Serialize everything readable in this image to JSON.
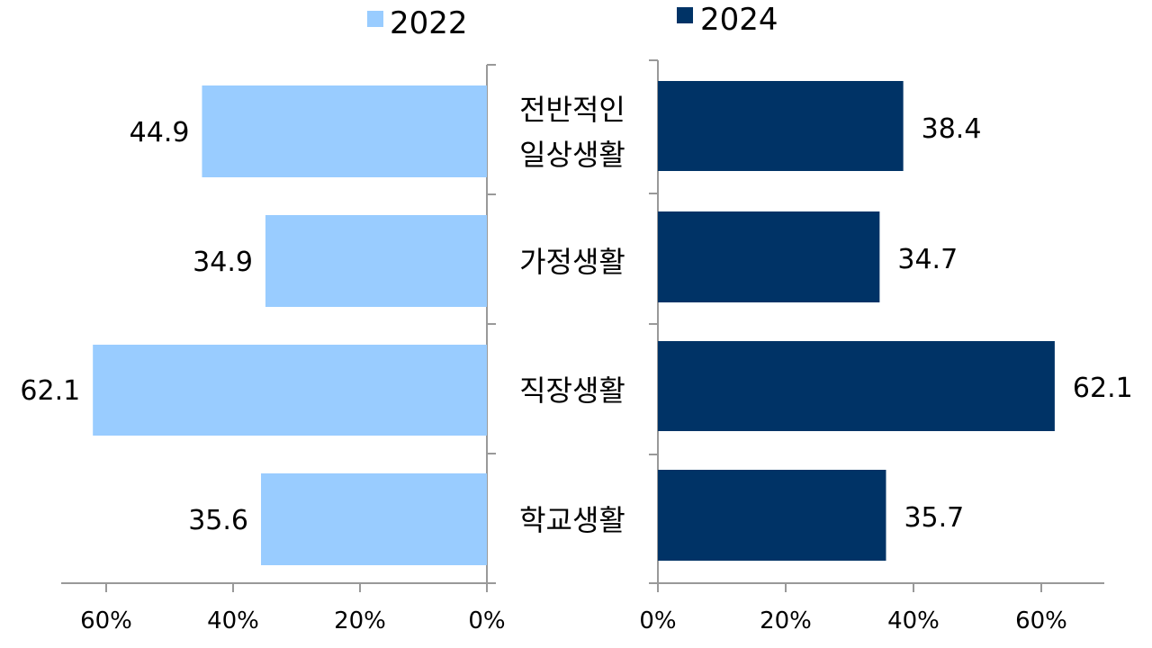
{
  "chart_data": {
    "type": "bar",
    "orientation": "horizontal-butterfly",
    "categories": [
      [
        "전반적인",
        "일상생활"
      ],
      [
        "가정생활"
      ],
      [
        "직장생활"
      ],
      [
        "학교생활"
      ]
    ],
    "series": [
      {
        "name": "2022",
        "values": [
          44.9,
          34.9,
          62.1,
          35.6
        ],
        "color": "#99CCFF",
        "side": "left"
      },
      {
        "name": "2024",
        "values": [
          38.4,
          34.7,
          62.1,
          35.7
        ],
        "color": "#003366",
        "side": "right"
      }
    ],
    "xlim": [
      0,
      70
    ],
    "ticks": [
      0,
      20,
      40,
      60
    ],
    "tick_suffix": "%",
    "legend_position": "top-center",
    "grid": false
  }
}
